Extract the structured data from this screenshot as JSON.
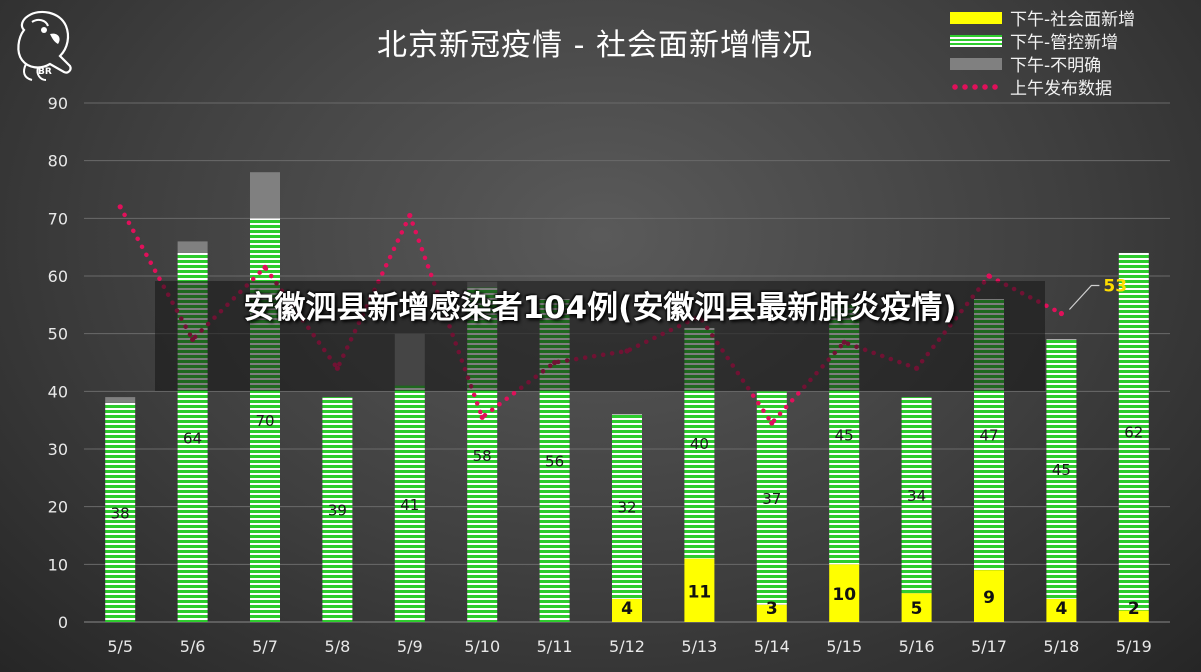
{
  "overlay": {
    "headline": "安徽泗县新增感染者104例(安徽泗县最新肺炎疫情)"
  },
  "logo": {
    "text": "BR"
  },
  "chart_data": {
    "type": "bar",
    "stacked": true,
    "title": "北京新冠疫情 - 社会面新增情况",
    "categories": [
      "5/5",
      "5/6",
      "5/7",
      "5/8",
      "5/9",
      "5/10",
      "5/11",
      "5/12",
      "5/13",
      "5/14",
      "5/15",
      "5/16",
      "5/17",
      "5/18",
      "5/19"
    ],
    "ylim": [
      0,
      90
    ],
    "yticks": [
      0,
      10,
      20,
      30,
      40,
      50,
      60,
      70,
      80,
      90
    ],
    "grid": true,
    "legend_position": "top-right",
    "series": [
      {
        "name": "下午-社会面新增",
        "kind": "bar",
        "color": "#ffff00",
        "values": [
          0,
          0,
          0,
          0,
          0,
          0,
          0,
          4,
          11,
          3,
          10,
          5,
          9,
          4,
          2
        ]
      },
      {
        "name": "下午-管控新增",
        "kind": "bar",
        "color": "#2ecc2e",
        "values": [
          38,
          64,
          70,
          39,
          41,
          58,
          56,
          32,
          40,
          37,
          45,
          34,
          47,
          45,
          62
        ]
      },
      {
        "name": "下午-不明确",
        "kind": "bar",
        "color": "#808080",
        "values": [
          1,
          2,
          8,
          0,
          9,
          1,
          0,
          0,
          0,
          0,
          0,
          0,
          0,
          0,
          0
        ]
      },
      {
        "name": "上午发布数据",
        "kind": "line",
        "color": "#e0105a",
        "values": [
          72,
          49,
          61.5,
          44,
          70.5,
          35.5,
          45,
          47,
          53,
          34.5,
          48.5,
          44,
          60,
          53.5,
          null
        ]
      }
    ],
    "annotations": [
      {
        "category": "5/18",
        "text": "53",
        "color": "#ffdd00"
      }
    ]
  }
}
